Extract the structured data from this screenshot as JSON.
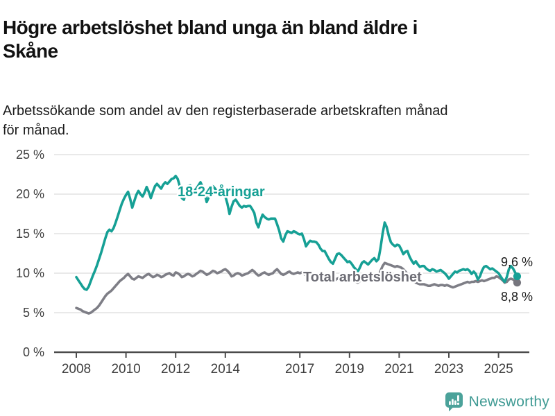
{
  "header": {
    "title_lines": [
      "Högre arbetslöshet bland unga än bland äldre i",
      "Skåne"
    ],
    "subtitle_lines": [
      "Arbetssökande som andel av den registerbaserade arbetskraften månad",
      "för månad."
    ]
  },
  "footer": {
    "brand": "Newsworthy",
    "brand_color": "#3f9a93",
    "icon_color": "#4ba29a"
  },
  "chart_data": {
    "type": "line",
    "title": "Högre arbetslöshet bland unga än bland äldre i Skåne",
    "subtitle": "Arbetssökande som andel av den registerbaserade arbetskraften månad för månad.",
    "x_unit": "month",
    "x_start_year": 2008,
    "x_end": "2025-10",
    "xticks": [
      2008,
      2010,
      2012,
      2014,
      2017,
      2019,
      2021,
      2023,
      2025
    ],
    "yticks": [
      0,
      5,
      10,
      15,
      20,
      25
    ],
    "ytick_suffix": " %",
    "ylim": [
      0,
      26.5
    ],
    "grid": true,
    "legend": "inline-labels",
    "colors": {
      "youth": "#16a095",
      "total": "#7e7e86",
      "grid": "#dcdcdc",
      "axis": "#4b4b4b",
      "tick_text": "#3d3d3d",
      "end_label_text": "#1a1a1a",
      "total_label_text": "#6d6d75"
    },
    "series": [
      {
        "id": "total",
        "label": "Total arbetslöshet",
        "end_label": "8,8 %",
        "end_value": 8.8,
        "values": [
          5.6,
          5.5,
          5.4,
          5.2,
          5.1,
          5.0,
          4.9,
          5.0,
          5.2,
          5.4,
          5.6,
          5.9,
          6.3,
          6.7,
          7.1,
          7.4,
          7.6,
          7.8,
          8.1,
          8.4,
          8.7,
          9.0,
          9.2,
          9.4,
          9.7,
          9.9,
          9.6,
          9.3,
          9.2,
          9.4,
          9.6,
          9.5,
          9.4,
          9.6,
          9.8,
          9.9,
          9.7,
          9.5,
          9.6,
          9.8,
          9.7,
          9.5,
          9.6,
          9.8,
          9.9,
          10.0,
          9.8,
          9.7,
          10.1,
          10.0,
          9.8,
          9.5,
          9.6,
          9.8,
          9.9,
          9.8,
          9.6,
          9.7,
          9.9,
          10.1,
          10.3,
          10.2,
          10.0,
          9.8,
          9.9,
          10.1,
          10.3,
          10.2,
          10.0,
          10.1,
          10.2,
          10.4,
          10.5,
          10.3,
          10.0,
          9.6,
          9.7,
          9.9,
          10.0,
          9.9,
          9.7,
          9.8,
          9.9,
          10.0,
          10.2,
          10.4,
          10.2,
          9.9,
          9.7,
          9.8,
          10.0,
          10.1,
          9.9,
          9.8,
          9.9,
          10.0,
          10.3,
          10.5,
          10.2,
          9.9,
          9.8,
          9.9,
          10.1,
          10.2,
          10.0,
          9.9,
          10.0,
          10.1,
          10.0,
          10.1,
          9.9,
          9.7,
          9.6,
          9.7,
          9.8,
          9.9,
          9.7,
          9.6,
          9.5,
          9.6,
          9.6,
          9.5,
          9.3,
          9.1,
          9.0,
          9.1,
          9.3,
          9.4,
          9.2,
          9.1,
          9.0,
          9.1,
          9.2,
          9.1,
          9.0,
          8.9,
          8.8,
          9.0,
          9.2,
          9.3,
          9.2,
          9.1,
          9.2,
          9.4,
          9.5,
          9.4,
          9.6,
          10.3,
          10.9,
          11.3,
          11.2,
          11.1,
          11.0,
          10.9,
          10.8,
          10.9,
          10.8,
          10.7,
          10.5,
          10.2,
          9.9,
          9.6,
          9.3,
          9.0,
          8.8,
          8.7,
          8.6,
          8.6,
          8.6,
          8.5,
          8.4,
          8.4,
          8.5,
          8.6,
          8.5,
          8.4,
          8.5,
          8.5,
          8.4,
          8.5,
          8.4,
          8.3,
          8.2,
          8.3,
          8.4,
          8.5,
          8.6,
          8.7,
          8.8,
          8.9,
          8.8,
          8.9,
          8.9,
          9.0,
          8.9,
          9.0,
          9.1,
          9.0,
          9.1,
          9.2,
          9.3,
          9.4,
          9.4,
          9.6,
          9.5,
          9.3,
          9.1,
          8.8,
          8.9,
          9.2,
          9.3,
          9.2,
          9.0,
          8.8
        ]
      },
      {
        "id": "youth",
        "label": "18-24-åringar",
        "end_label": "9,6 %",
        "end_value": 9.6,
        "values": [
          9.5,
          9.1,
          8.7,
          8.3,
          8.0,
          7.9,
          8.3,
          9.0,
          9.7,
          10.3,
          11.0,
          11.8,
          12.6,
          13.5,
          14.4,
          15.2,
          15.5,
          15.3,
          15.7,
          16.4,
          17.2,
          18.0,
          18.8,
          19.4,
          19.9,
          20.3,
          19.4,
          18.3,
          19.1,
          19.9,
          20.4,
          20.0,
          19.7,
          20.2,
          20.9,
          20.3,
          19.5,
          20.3,
          21.0,
          21.3,
          21.0,
          20.7,
          21.2,
          21.5,
          21.3,
          21.6,
          21.9,
          22.0,
          22.3,
          21.9,
          21.0,
          19.5,
          19.3,
          20.3,
          21.0,
          21.1,
          20.7,
          20.4,
          20.7,
          21.1,
          21.5,
          20.9,
          20.1,
          19.0,
          19.6,
          20.4,
          21.0,
          20.7,
          20.3,
          20.0,
          19.9,
          19.8,
          19.7,
          18.8,
          17.5,
          18.4,
          19.1,
          19.3,
          18.9,
          18.5,
          18.3,
          18.5,
          18.4,
          18.5,
          18.5,
          18.1,
          17.6,
          16.4,
          15.8,
          16.7,
          17.4,
          17.1,
          16.9,
          16.8,
          16.9,
          16.9,
          16.9,
          16.2,
          15.4,
          14.4,
          14.0,
          14.8,
          15.3,
          15.2,
          15.1,
          15.3,
          15.2,
          15.0,
          14.9,
          15.0,
          14.3,
          13.4,
          13.8,
          14.1,
          14.0,
          14.0,
          13.9,
          13.6,
          13.1,
          12.8,
          12.8,
          12.3,
          11.8,
          11.4,
          11.2,
          11.8,
          12.4,
          12.5,
          12.3,
          12.0,
          11.7,
          11.4,
          11.5,
          11.2,
          10.8,
          10.5,
          10.2,
          10.7,
          11.3,
          11.5,
          11.3,
          11.1,
          11.4,
          11.7,
          11.9,
          11.5,
          11.8,
          13.2,
          15.0,
          16.4,
          15.8,
          14.7,
          13.9,
          13.6,
          13.4,
          13.6,
          13.5,
          13.0,
          12.4,
          12.7,
          12.8,
          12.1,
          11.6,
          11.2,
          11.5,
          11.1,
          10.8,
          10.9,
          10.9,
          10.6,
          10.4,
          10.3,
          10.5,
          10.4,
          10.2,
          10.3,
          10.4,
          10.2,
          10.0,
          9.7,
          9.3,
          9.6,
          9.9,
          10.2,
          10.1,
          10.3,
          10.4,
          10.5,
          10.4,
          10.5,
          10.3,
          9.9,
          10.2,
          9.9,
          9.2,
          9.6,
          10.3,
          10.8,
          10.9,
          10.7,
          10.5,
          10.6,
          10.4,
          10.2,
          10.0,
          9.6,
          9.2,
          8.9,
          9.5,
          10.5,
          10.9,
          10.6,
          10.1,
          9.6
        ]
      }
    ]
  }
}
